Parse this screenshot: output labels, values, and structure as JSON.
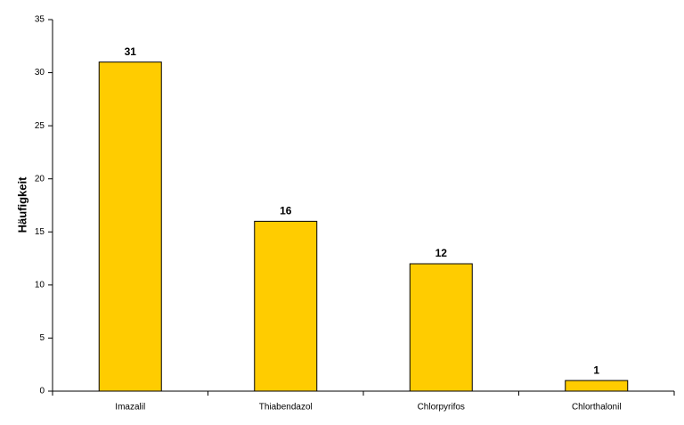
{
  "chart_data": {
    "type": "bar",
    "y_label": "Häufigkeit",
    "categories": [
      "Imazalil",
      "Thiabendazol",
      "Chlorpyrifos",
      "Chlorthalonil"
    ],
    "values": [
      31,
      16,
      12,
      1
    ],
    "color": "#ffcc00",
    "ylim": [
      0,
      35
    ],
    "yticks": [
      0,
      5,
      10,
      15,
      20,
      25,
      30,
      35
    ],
    "grid": false
  }
}
